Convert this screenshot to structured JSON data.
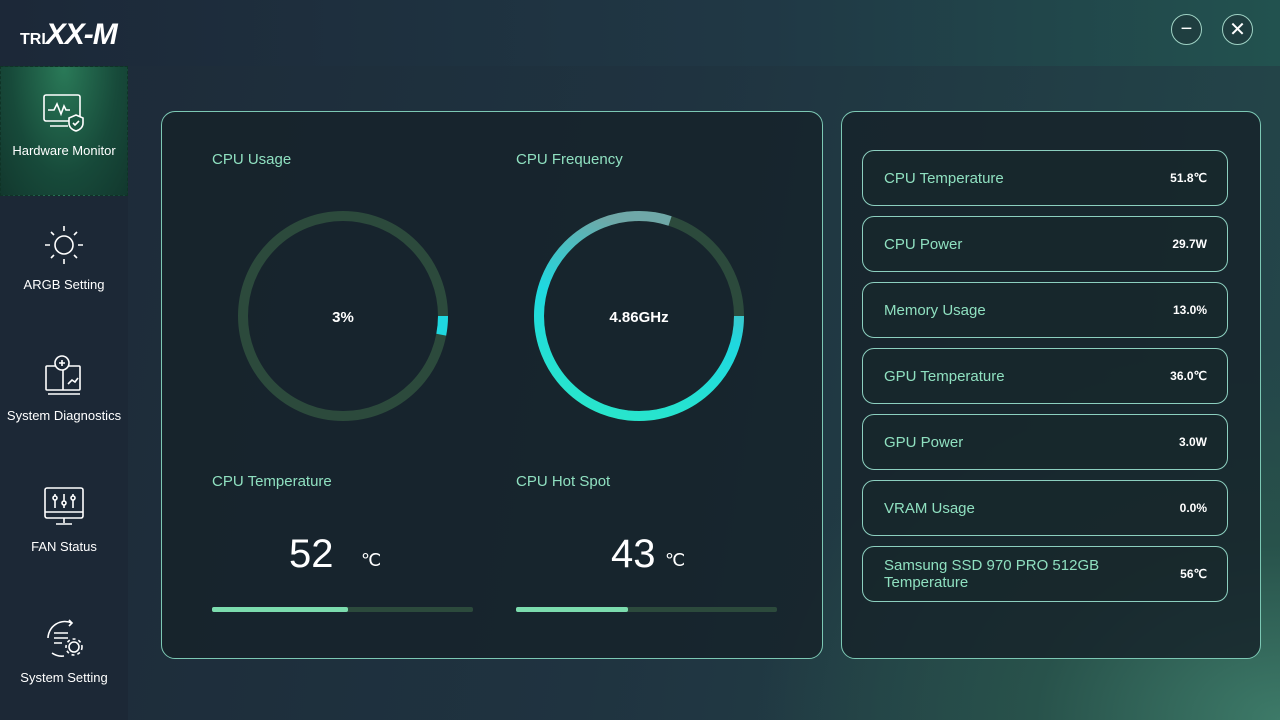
{
  "app": {
    "logo": "TRIXX-M",
    "minimize_icon": "minus-icon",
    "close_icon": "x-icon"
  },
  "sidebar": {
    "items": [
      {
        "label": "Hardware Monitor",
        "icon": "monitor-heartbeat-shield-icon",
        "active": true
      },
      {
        "label": "ARGB Setting",
        "icon": "sun-icon"
      },
      {
        "label": "System Diagnostics",
        "icon": "diagnostics-icon"
      },
      {
        "label": "FAN Status",
        "icon": "fan-sliders-icon"
      },
      {
        "label": "System Setting",
        "icon": "settings-cycle-icon"
      }
    ]
  },
  "main": {
    "cpu_usage": {
      "label": "CPU Usage",
      "value": "3%",
      "fraction": 0.03
    },
    "cpu_frequency": {
      "label": "CPU Frequency",
      "value": "4.86GHz",
      "fraction": 0.8
    },
    "cpu_temperature": {
      "label": "CPU Temperature",
      "value": "52",
      "unit": "℃",
      "fraction": 0.52
    },
    "cpu_hotspot": {
      "label": "CPU Hot Spot",
      "value": "43",
      "unit": "℃",
      "fraction": 0.43
    }
  },
  "stats": [
    {
      "name": "CPU Temperature",
      "value": "51.8℃"
    },
    {
      "name": "CPU Power",
      "value": "29.7W"
    },
    {
      "name": "Memory Usage",
      "value": "13.0%"
    },
    {
      "name": "GPU Temperature",
      "value": "36.0℃"
    },
    {
      "name": "GPU Power",
      "value": "3.0W"
    },
    {
      "name": "VRAM Usage",
      "value": "0.0%"
    },
    {
      "name": "Samsung SSD 970 PRO 512GB Temperature",
      "value": "56℃"
    }
  ],
  "colors": {
    "accent": "#8fe0c0",
    "gauge_track": "#2c4a3c",
    "gauge_fill_start": "#1fd8e0",
    "gauge_fill_end": "#2ae8c8",
    "bar_fill": "#7cdcae"
  }
}
